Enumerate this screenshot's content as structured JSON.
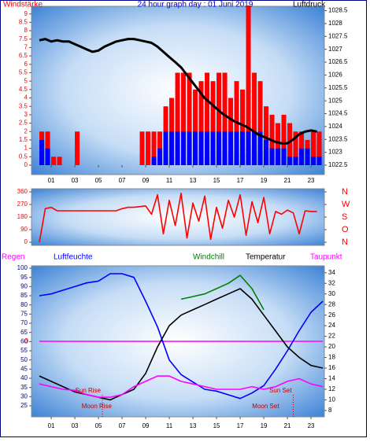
{
  "chart_data": [
    {
      "type": "bar",
      "title": "24 hour graph day : 01 Juni 2019",
      "ylabel": "Windstärke",
      "y2label": "Luftdruck",
      "xlim": [
        -0.67,
        24.13
      ],
      "xticks": [
        {
          "value": 1,
          "label": "01"
        },
        {
          "value": 3,
          "label": "03"
        },
        {
          "value": 5,
          "label": "05"
        },
        {
          "value": 7,
          "label": "07"
        },
        {
          "value": 9,
          "label": "09"
        },
        {
          "value": 11,
          "label": "11"
        },
        {
          "value": 13,
          "label": "13"
        },
        {
          "value": 15,
          "label": "15"
        },
        {
          "value": 17,
          "label": "17"
        },
        {
          "value": 19,
          "label": "19"
        },
        {
          "value": 21,
          "label": "21"
        },
        {
          "value": 23,
          "label": "23"
        }
      ],
      "ylim": [
        0,
        9.5
      ],
      "yticks": [
        0,
        0.5,
        1,
        1.5,
        2,
        2.5,
        3,
        3.5,
        4,
        4.5,
        5,
        5.5,
        6,
        6.5,
        7,
        7.5,
        8,
        8.5,
        9
      ],
      "y2lim": [
        1022.5,
        1028.7
      ],
      "y2ticks": [
        1022.5,
        1023,
        1023.5,
        1024,
        1024.5,
        1025,
        1025.5,
        1026,
        1026.5,
        1027,
        1027.5,
        1028,
        1028.5
      ],
      "x": [
        0,
        0.5,
        1,
        1.5,
        2,
        2.5,
        3,
        3.5,
        4,
        4.5,
        5,
        5.5,
        6,
        6.5,
        7,
        7.5,
        8,
        8.5,
        9,
        9.5,
        10,
        10.5,
        11,
        11.5,
        12,
        12.5,
        13,
        13.5,
        14,
        14.5,
        15,
        15.5,
        16,
        16.5,
        17,
        17.5,
        18,
        18.5,
        19,
        19.5,
        20,
        20.5,
        21,
        21.5,
        22,
        22.5,
        23,
        23.5
      ],
      "series": [
        {
          "color": "#ff0000",
          "values": [
            2,
            2,
            0.5,
            0.5,
            0,
            0,
            2,
            0,
            0,
            0,
            0,
            0,
            0,
            0,
            0,
            0,
            0,
            2,
            2,
            2,
            2,
            3.5,
            4,
            5.5,
            5.5,
            5.5,
            4.5,
            5,
            5.5,
            5,
            5.5,
            5.5,
            4,
            5,
            4.5,
            9.5,
            5.5,
            5,
            3.5,
            3,
            2.5,
            3,
            2.5,
            2,
            2,
            1.5,
            2,
            2
          ]
        },
        {
          "color": "#0000ff",
          "values": [
            1.5,
            1,
            0,
            0,
            0,
            0,
            0,
            0,
            0,
            0,
            0,
            0,
            0,
            0,
            0,
            0,
            0,
            0,
            0,
            0.5,
            1,
            2,
            2,
            2,
            2,
            2,
            2,
            2,
            2,
            2,
            2,
            2,
            2,
            2,
            2,
            2,
            2,
            2,
            1.5,
            1,
            1,
            1,
            0.5,
            0.5,
            1,
            1,
            0.5,
            0.5
          ]
        },
        {
          "color": "#000000",
          "axis": "y2",
          "values": [
            1027.35,
            1027.4,
            1027.3,
            1027.35,
            1027.3,
            1027.3,
            1027.2,
            1027.1,
            1027.0,
            1026.9,
            1026.95,
            1027.1,
            1027.2,
            1027.3,
            1027.35,
            1027.4,
            1027.4,
            1027.35,
            1027.3,
            1027.25,
            1027.1,
            1026.9,
            1026.7,
            1026.5,
            1026.3,
            1026.0,
            1025.7,
            1025.4,
            1025.1,
            1024.9,
            1024.7,
            1024.5,
            1024.35,
            1024.2,
            1024.1,
            1024.0,
            1023.85,
            1023.7,
            1023.6,
            1023.5,
            1023.4,
            1023.35,
            1023.35,
            1023.5,
            1023.7,
            1023.8,
            1023.85,
            1023.8
          ]
        }
      ]
    },
    {
      "type": "line",
      "xlim": [
        -0.67,
        24.13
      ],
      "ylim": [
        0,
        360
      ],
      "yticks": [
        0,
        90,
        180,
        270,
        360
      ],
      "y2lim": [
        0,
        360
      ],
      "y2ticks": [
        {
          "value": 0,
          "label": "N"
        },
        {
          "value": 90,
          "label": "O"
        },
        {
          "value": 180,
          "label": "S"
        },
        {
          "value": 270,
          "label": "W"
        },
        {
          "value": 360,
          "label": "N"
        }
      ],
      "x": [
        0,
        0.5,
        1,
        1.5,
        2,
        2.5,
        3,
        3.5,
        4,
        4.5,
        5,
        5.5,
        6,
        6.5,
        7,
        7.5,
        8,
        8.5,
        9,
        9.5,
        10,
        10.5,
        11,
        11.5,
        12,
        12.5,
        13,
        13.5,
        14,
        14.5,
        15,
        15.5,
        16,
        16.5,
        17,
        17.5,
        18,
        18.5,
        19,
        19.5,
        20,
        20.5,
        21,
        21.5,
        22,
        22.5,
        23,
        23.5
      ],
      "series": [
        {
          "color": "#ff0000",
          "values": [
            0,
            240,
            250,
            225,
            225,
            225,
            225,
            225,
            225,
            225,
            225,
            225,
            225,
            225,
            240,
            250,
            250,
            255,
            260,
            200,
            340,
            60,
            300,
            120,
            350,
            30,
            280,
            150,
            330,
            20,
            250,
            100,
            300,
            180,
            340,
            50,
            290,
            140,
            320,
            60,
            220,
            200,
            230,
            210,
            60,
            225,
            220,
            220
          ]
        }
      ]
    },
    {
      "type": "line",
      "xlim": [
        -0.67,
        24.13
      ],
      "xticks": [
        {
          "value": 1,
          "label": "01"
        },
        {
          "value": 3,
          "label": "03"
        },
        {
          "value": 5,
          "label": "05"
        },
        {
          "value": 7,
          "label": "07"
        },
        {
          "value": 9,
          "label": "09"
        },
        {
          "value": 11,
          "label": "11"
        },
        {
          "value": 13,
          "label": "13"
        },
        {
          "value": 15,
          "label": "15"
        },
        {
          "value": 17,
          "label": "17"
        },
        {
          "value": 19,
          "label": "19"
        },
        {
          "value": 21,
          "label": "21"
        },
        {
          "value": 23,
          "label": "23"
        }
      ],
      "ylim": [
        19,
        101.3
      ],
      "yticks": [
        25,
        30,
        35,
        40,
        45,
        50,
        55,
        60,
        65,
        70,
        75,
        80,
        85,
        90,
        95,
        100
      ],
      "y2lim": [
        6.8,
        35.3
      ],
      "y2ticks": [
        8,
        10,
        12,
        14,
        16,
        18,
        20,
        22,
        24,
        26,
        28,
        30,
        32,
        34
      ],
      "y3lim": [
        -1,
        1
      ],
      "y3ticks": [
        0
      ],
      "x": [
        0,
        1,
        2,
        3,
        4,
        5,
        6,
        7,
        8,
        9,
        10,
        11,
        12,
        13,
        14,
        15,
        16,
        17,
        18,
        19,
        20,
        21,
        22,
        23,
        24
      ],
      "series": [
        {
          "name": "Regen",
          "color": "#ff00ff",
          "axis": "y3",
          "values": [
            0,
            0,
            0,
            0,
            0,
            0,
            0,
            0,
            0,
            0,
            0,
            0,
            0,
            0,
            0,
            0,
            0,
            0,
            0,
            0,
            0,
            0,
            0,
            0,
            0
          ]
        },
        {
          "name": "Luftfeuchte",
          "color": "#0000ff",
          "values": [
            85,
            86,
            88,
            90,
            92,
            93,
            97,
            97,
            95,
            82,
            68,
            50,
            42,
            38,
            34,
            33,
            31,
            29,
            32,
            36,
            45,
            55,
            66,
            76,
            82
          ]
        },
        {
          "name": "Windchill",
          "color": "#008000",
          "axis": "y2",
          "values": [
            null,
            null,
            null,
            null,
            null,
            null,
            null,
            null,
            null,
            null,
            null,
            null,
            29,
            29.5,
            30,
            31,
            32,
            33.5,
            31,
            27,
            null,
            null,
            null,
            null,
            null
          ]
        },
        {
          "name": "Temperatur",
          "color": "#000000",
          "axis": "y2",
          "values": [
            14.5,
            13.5,
            12.5,
            11.5,
            11,
            10.5,
            10,
            11,
            12,
            15,
            20,
            24,
            26,
            27,
            28,
            29,
            30,
            31,
            29,
            26,
            23,
            20,
            18,
            16.5,
            16
          ]
        },
        {
          "name": "Taupunkt",
          "color": "#ff00ff",
          "axis": "y2",
          "values": [
            13,
            12.5,
            12,
            11.8,
            11,
            10.5,
            10.5,
            11,
            12.5,
            13.5,
            14.5,
            14.5,
            13.5,
            13,
            12.5,
            12,
            12,
            12,
            12.5,
            12,
            12.5,
            13.5,
            14,
            13,
            12.5
          ]
        }
      ],
      "annotations": [
        {
          "text": "Sun Rise",
          "x": 5.33
        },
        {
          "text": "Sun Set",
          "x": 21.5
        },
        {
          "text": "Moon Rise"
        },
        {
          "text": "Moon Set"
        }
      ]
    }
  ]
}
